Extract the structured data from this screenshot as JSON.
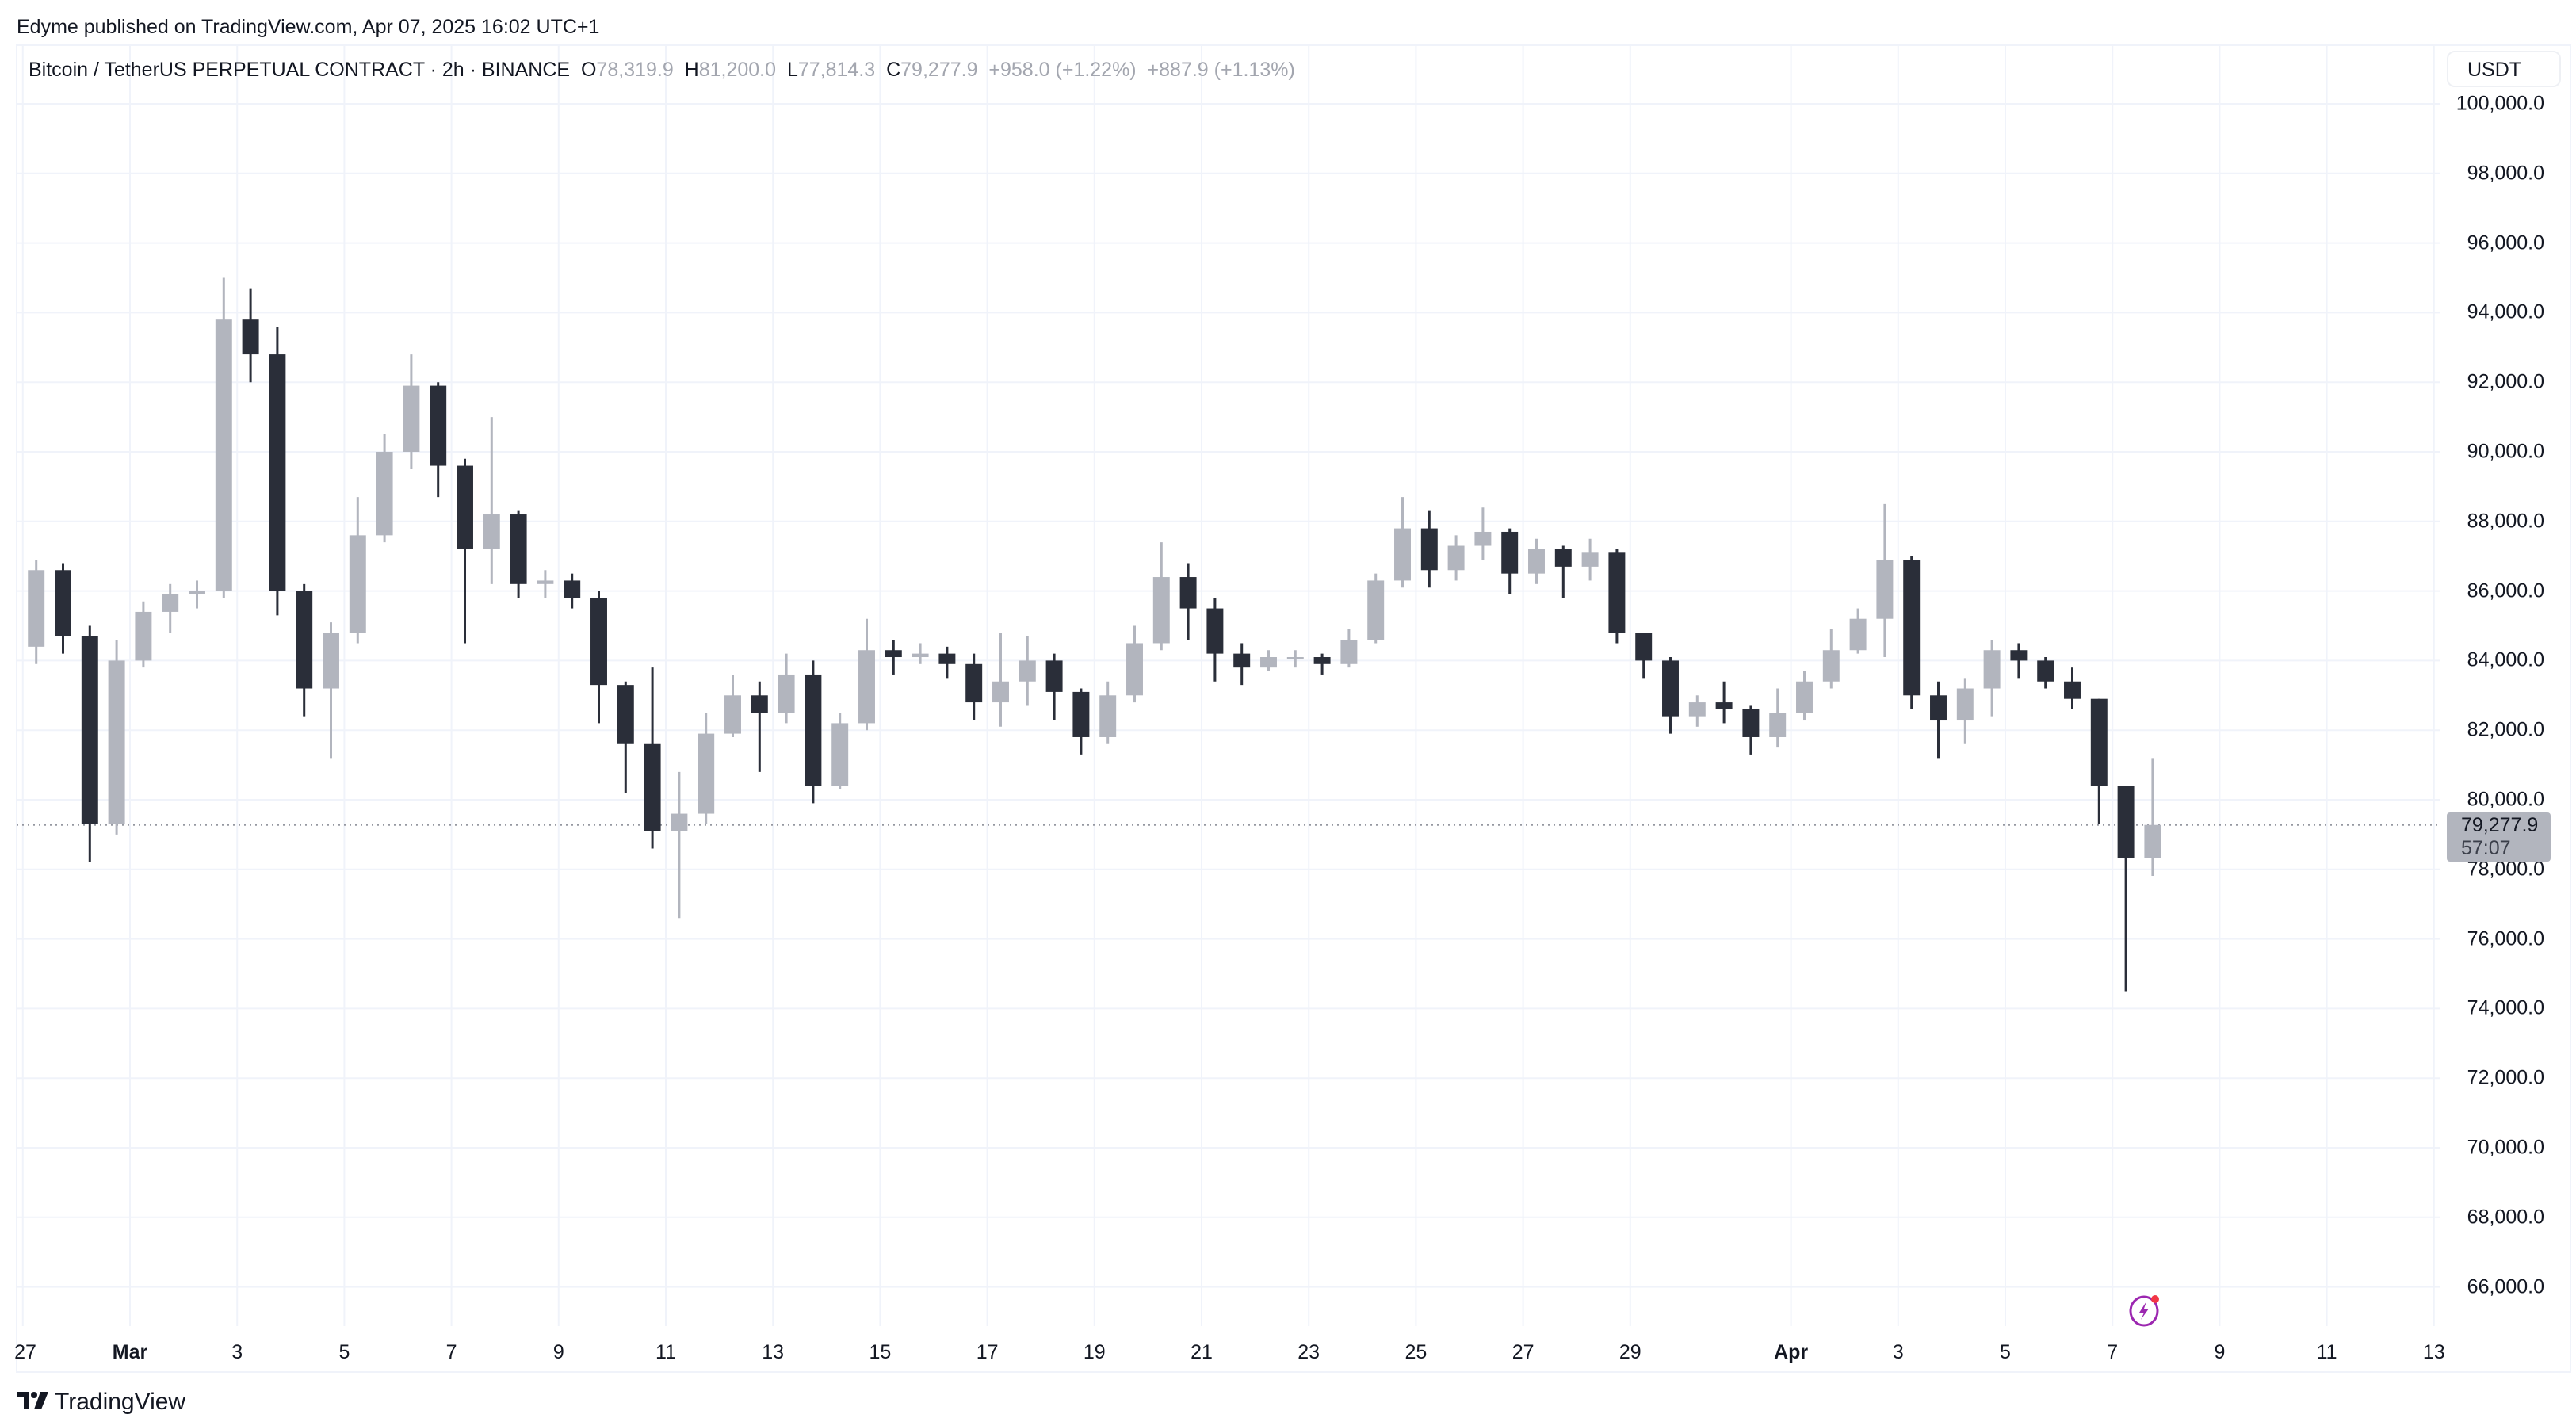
{
  "publisher_line": "Edyme published on TradingView.com, Apr 07, 2025 16:02 UTC+1",
  "legend": {
    "symbol": "Bitcoin / TetherUS PERPETUAL CONTRACT · 2h · BINANCE",
    "o_label": "O",
    "o_value": "78,319.9",
    "h_label": "H",
    "h_value": "81,200.0",
    "l_label": "L",
    "l_value": "77,814.3",
    "c_label": "C",
    "c_value": "79,277.9",
    "change": "+958.0 (+1.22%)",
    "change2": "+887.9 (+1.13%)"
  },
  "currency": "USDT",
  "last_price": {
    "value": "79,277.9",
    "countdown": "57:07"
  },
  "brand": "TradingView",
  "icons": {
    "logo": "tradingview-logo-icon",
    "bolt": "lightning-alert-icon"
  },
  "colors": {
    "up": "#b2b5be",
    "down": "#2a2e39",
    "grid": "#f0f3fa",
    "accent": "#9c27b0",
    "badge": "#f23645"
  },
  "chart_data": {
    "type": "candlestick",
    "title": "Bitcoin / TetherUS PERPETUAL CONTRACT · 2h · BINANCE",
    "start": "2025-02-27T00:00:00Z",
    "interval_hours": 12,
    "ylim": [
      65000,
      101000
    ],
    "price_ticks": [
      "100,000.0",
      "98,000.0",
      "96,000.0",
      "94,000.0",
      "92,000.0",
      "90,000.0",
      "88,000.0",
      "86,000.0",
      "84,000.0",
      "82,000.0",
      "80,000.0",
      "78,000.0",
      "76,000.0",
      "74,000.0",
      "72,000.0",
      "70,000.0",
      "68,000.0",
      "66,000.0"
    ],
    "time_ticks": [
      {
        "label": "27",
        "date": "2025-02-27"
      },
      {
        "label": "Mar",
        "date": "2025-03-01",
        "bold": true
      },
      {
        "label": "3",
        "date": "2025-03-03"
      },
      {
        "label": "5",
        "date": "2025-03-05"
      },
      {
        "label": "7",
        "date": "2025-03-07"
      },
      {
        "label": "9",
        "date": "2025-03-09"
      },
      {
        "label": "11",
        "date": "2025-03-11"
      },
      {
        "label": "13",
        "date": "2025-03-13"
      },
      {
        "label": "15",
        "date": "2025-03-15"
      },
      {
        "label": "17",
        "date": "2025-03-17"
      },
      {
        "label": "19",
        "date": "2025-03-19"
      },
      {
        "label": "21",
        "date": "2025-03-21"
      },
      {
        "label": "23",
        "date": "2025-03-23"
      },
      {
        "label": "25",
        "date": "2025-03-25"
      },
      {
        "label": "27",
        "date": "2025-03-27"
      },
      {
        "label": "29",
        "date": "2025-03-29"
      },
      {
        "label": "Apr",
        "date": "2025-04-01",
        "bold": true
      },
      {
        "label": "3",
        "date": "2025-04-03"
      },
      {
        "label": "5",
        "date": "2025-04-05"
      },
      {
        "label": "7",
        "date": "2025-04-07"
      },
      {
        "label": "9",
        "date": "2025-04-09"
      },
      {
        "label": "11",
        "date": "2025-04-11"
      },
      {
        "label": "13",
        "date": "2025-04-13"
      }
    ],
    "last": 79277.9,
    "ohlc": [
      [
        84400,
        86900,
        83900,
        86600
      ],
      [
        86600,
        86800,
        84200,
        84700
      ],
      [
        84700,
        85000,
        78200,
        79300
      ],
      [
        79300,
        84600,
        79000,
        84000
      ],
      [
        84000,
        85700,
        83800,
        85400
      ],
      [
        85400,
        86200,
        84800,
        85900
      ],
      [
        85900,
        86300,
        85500,
        86000
      ],
      [
        86000,
        95000,
        85800,
        93800
      ],
      [
        93800,
        94700,
        92000,
        92800
      ],
      [
        92800,
        93600,
        85300,
        86000
      ],
      [
        86000,
        86200,
        82400,
        83200
      ],
      [
        83200,
        85100,
        81200,
        84800
      ],
      [
        84800,
        88700,
        84500,
        87600
      ],
      [
        87600,
        90500,
        87400,
        90000
      ],
      [
        90000,
        92800,
        89500,
        91900
      ],
      [
        91900,
        92000,
        88700,
        89600
      ],
      [
        89600,
        89800,
        84500,
        87200
      ],
      [
        87200,
        91000,
        86200,
        88200
      ],
      [
        88200,
        88300,
        85800,
        86200
      ],
      [
        86200,
        86600,
        85800,
        86300
      ],
      [
        86300,
        86500,
        85500,
        85800
      ],
      [
        85800,
        86000,
        82200,
        83300
      ],
      [
        83300,
        83400,
        80200,
        81600
      ],
      [
        81600,
        83800,
        78600,
        79100
      ],
      [
        79100,
        80800,
        76600,
        79600
      ],
      [
        79600,
        82500,
        79300,
        81900
      ],
      [
        81900,
        83600,
        81800,
        83000
      ],
      [
        83000,
        83400,
        80800,
        82500
      ],
      [
        82500,
        84200,
        82200,
        83600
      ],
      [
        83600,
        84000,
        79900,
        80400
      ],
      [
        80400,
        82500,
        80300,
        82200
      ],
      [
        82200,
        85200,
        82000,
        84300
      ],
      [
        84300,
        84600,
        83600,
        84100
      ],
      [
        84100,
        84500,
        83900,
        84200
      ],
      [
        84200,
        84400,
        83500,
        83900
      ],
      [
        83900,
        84200,
        82300,
        82800
      ],
      [
        82800,
        84800,
        82100,
        83400
      ],
      [
        83400,
        84700,
        82700,
        84000
      ],
      [
        84000,
        84200,
        82300,
        83100
      ],
      [
        83100,
        83200,
        81300,
        81800
      ],
      [
        81800,
        83400,
        81600,
        83000
      ],
      [
        83000,
        85000,
        82800,
        84500
      ],
      [
        84500,
        87400,
        84300,
        86400
      ],
      [
        86400,
        86800,
        84600,
        85500
      ],
      [
        85500,
        85800,
        83400,
        84200
      ],
      [
        84200,
        84500,
        83300,
        83800
      ],
      [
        83800,
        84300,
        83700,
        84100
      ],
      [
        84100,
        84300,
        83800,
        84100
      ],
      [
        84100,
        84200,
        83600,
        83900
      ],
      [
        83900,
        84900,
        83800,
        84600
      ],
      [
        84600,
        86500,
        84500,
        86300
      ],
      [
        86300,
        88700,
        86100,
        87800
      ],
      [
        87800,
        88300,
        86100,
        86600
      ],
      [
        86600,
        87600,
        86300,
        87300
      ],
      [
        87300,
        88400,
        86900,
        87700
      ],
      [
        87700,
        87800,
        85900,
        86500
      ],
      [
        86500,
        87500,
        86200,
        87200
      ],
      [
        87200,
        87300,
        85800,
        86700
      ],
      [
        86700,
        87500,
        86300,
        87100
      ],
      [
        87100,
        87200,
        84500,
        84800
      ],
      [
        84800,
        84800,
        83500,
        84000
      ],
      [
        84000,
        84100,
        81900,
        82400
      ],
      [
        82400,
        83000,
        82100,
        82800
      ],
      [
        82800,
        83400,
        82200,
        82600
      ],
      [
        82600,
        82700,
        81300,
        81800
      ],
      [
        81800,
        83200,
        81500,
        82500
      ],
      [
        82500,
        83700,
        82300,
        83400
      ],
      [
        83400,
        84900,
        83200,
        84300
      ],
      [
        84300,
        85500,
        84200,
        85200
      ],
      [
        85200,
        88500,
        84100,
        86900
      ],
      [
        86900,
        87000,
        82600,
        83000
      ],
      [
        83000,
        83400,
        81200,
        82300
      ],
      [
        82300,
        83500,
        81600,
        83200
      ],
      [
        83200,
        84600,
        82400,
        84300
      ],
      [
        84300,
        84500,
        83500,
        84000
      ],
      [
        84000,
        84100,
        83200,
        83400
      ],
      [
        83400,
        83800,
        82600,
        82900
      ],
      [
        82900,
        82900,
        79300,
        80400
      ],
      [
        80400,
        80400,
        74500,
        78320
      ],
      [
        78319.9,
        81200,
        77814.3,
        79277.9
      ]
    ]
  }
}
